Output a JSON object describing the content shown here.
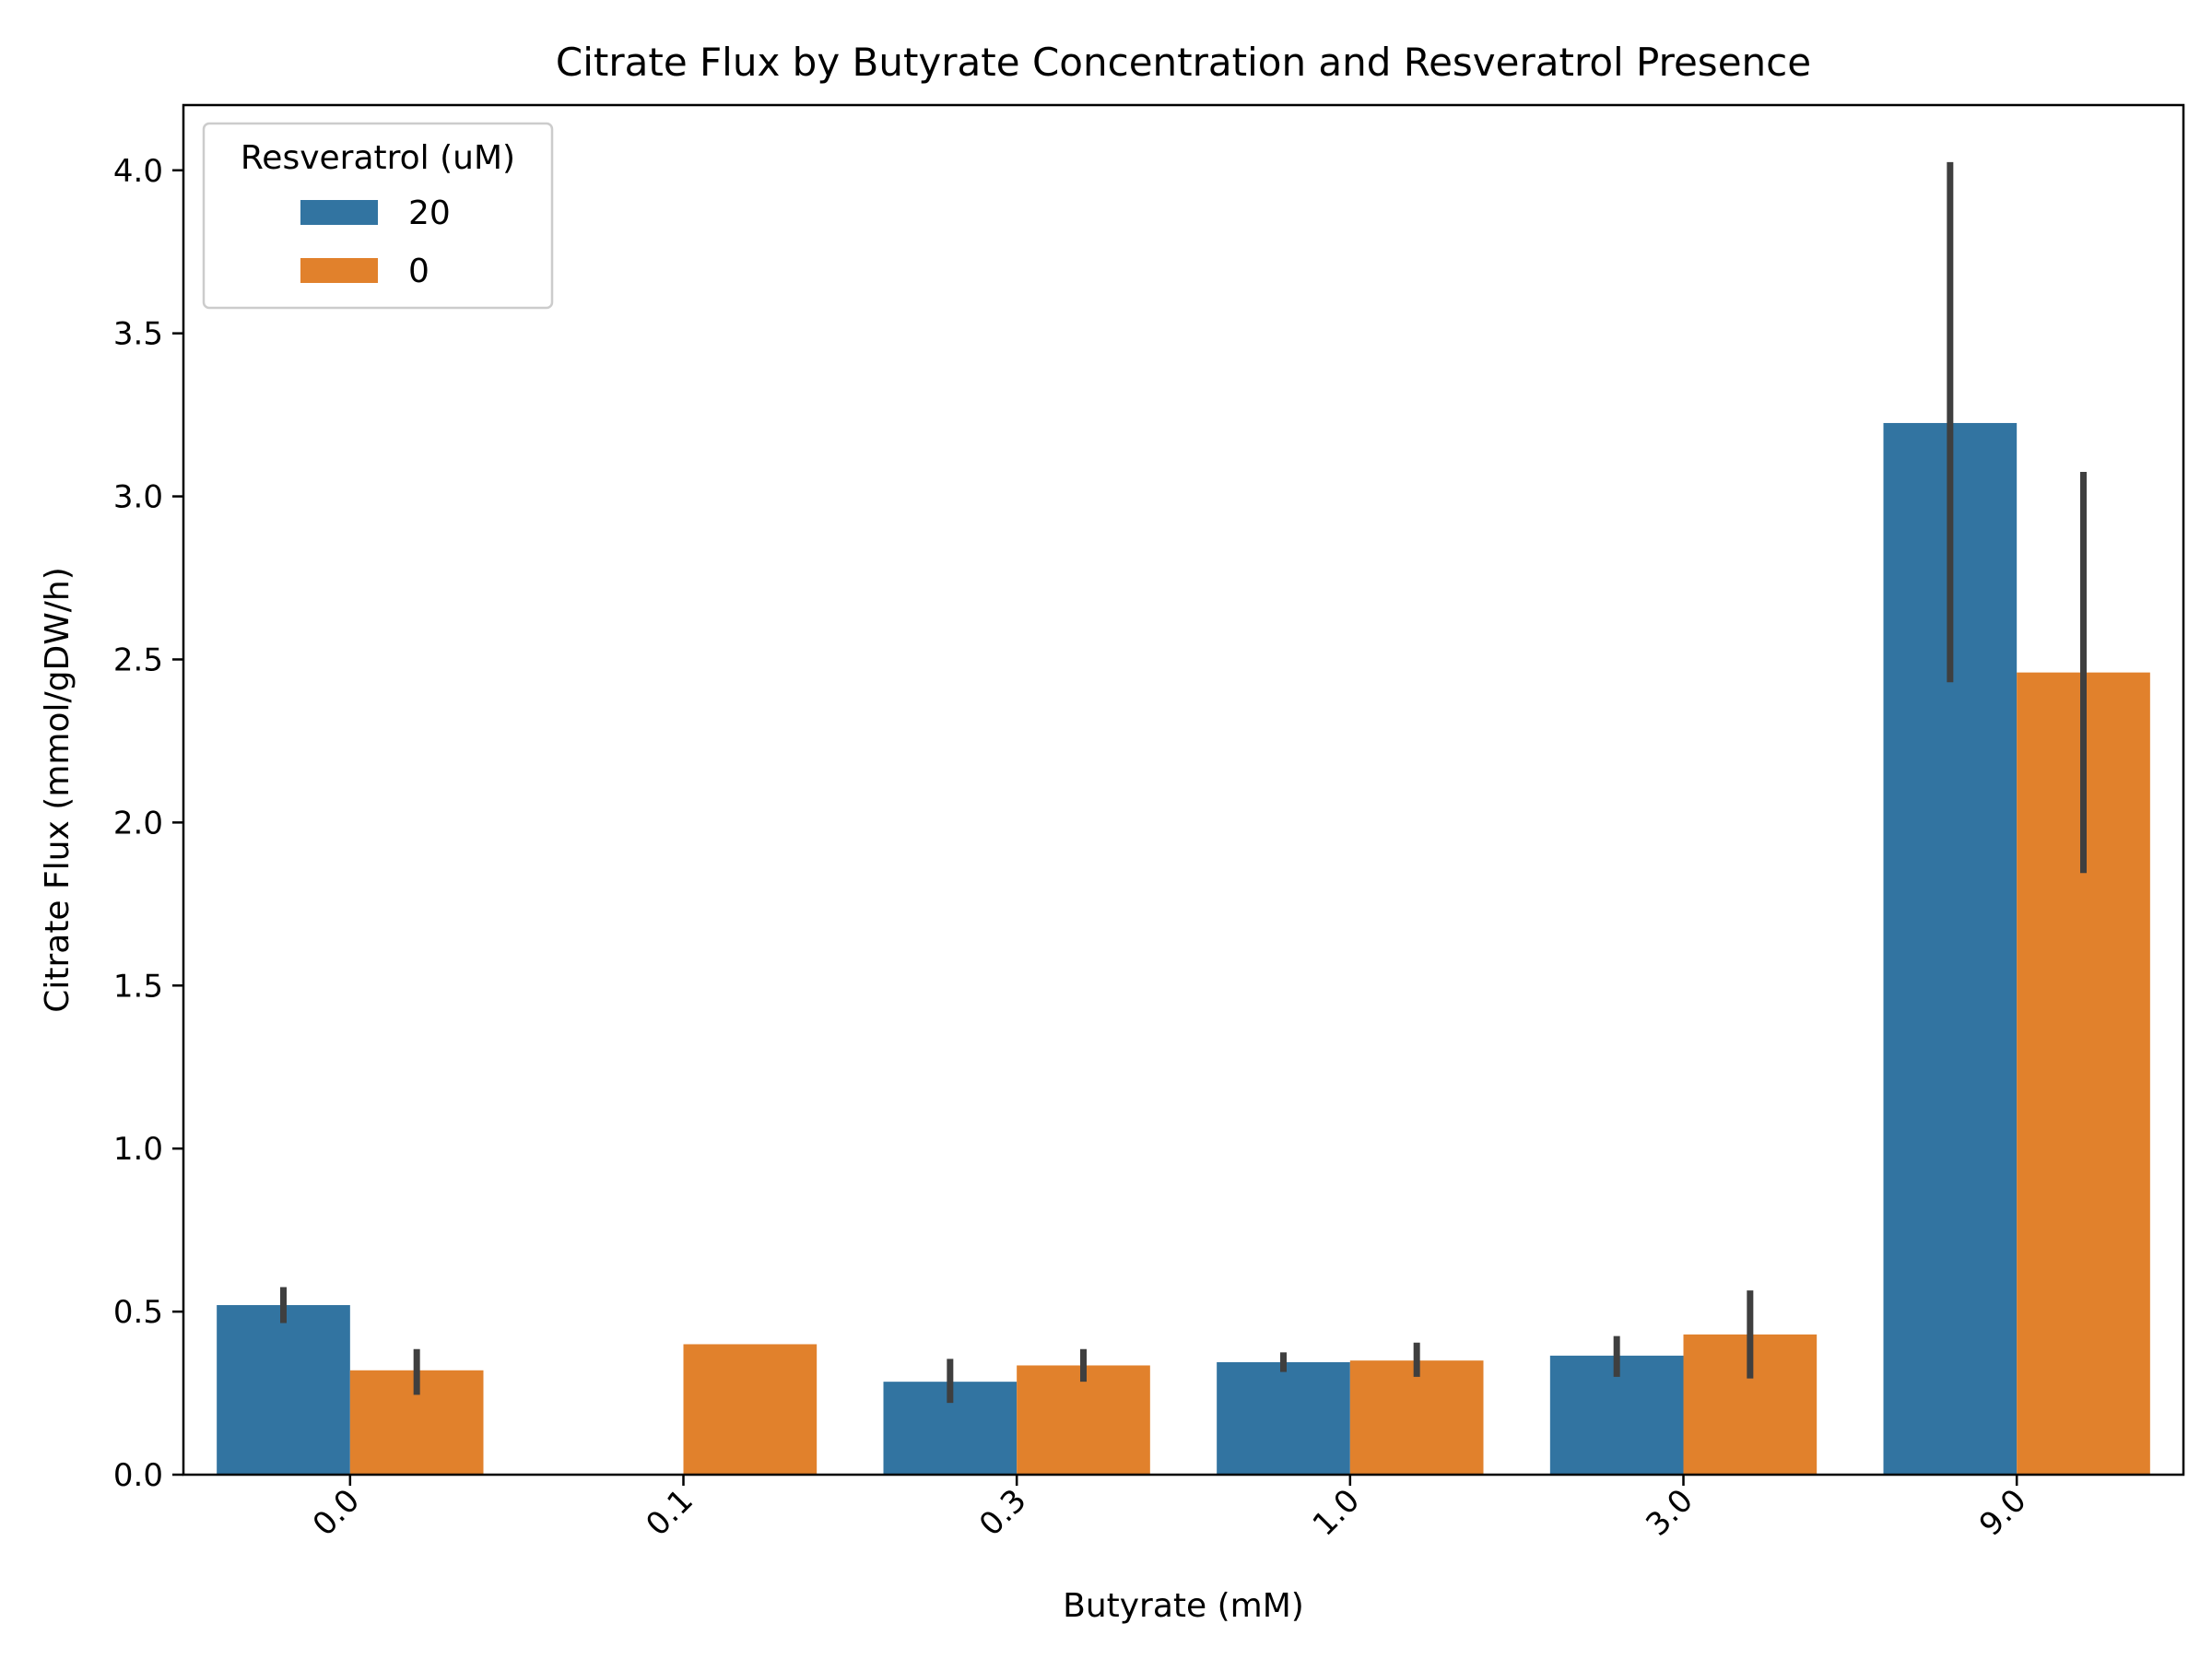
{
  "chart_data": {
    "type": "bar",
    "title": "Citrate Flux by Butyrate Concentration and Resveratrol Presence",
    "xlabel": "Butyrate (mM)",
    "ylabel": "Citrate Flux (mmol/gDW/h)",
    "categories": [
      "0.0",
      "0.1",
      "0.3",
      "1.0",
      "3.0",
      "9.0"
    ],
    "ylim": [
      0,
      4.2
    ],
    "yticks": [
      0.0,
      0.5,
      1.0,
      1.5,
      2.0,
      2.5,
      3.0,
      3.5,
      4.0
    ],
    "ytick_labels": [
      "0.0",
      "0.5",
      "1.0",
      "1.5",
      "2.0",
      "2.5",
      "3.0",
      "3.5",
      "4.0"
    ],
    "legend": {
      "title": "Resveratrol (uM)",
      "position": "top-left"
    },
    "series": [
      {
        "name": "20",
        "color": "#3274a1",
        "values": [
          0.52,
          null,
          0.285,
          0.345,
          0.365,
          3.225
        ],
        "err_low": [
          0.465,
          null,
          0.22,
          0.315,
          0.3,
          2.43
        ],
        "err_high": [
          0.575,
          null,
          0.355,
          0.375,
          0.425,
          4.025
        ]
      },
      {
        "name": "0",
        "color": "#e1812c",
        "values": [
          0.32,
          0.4,
          0.335,
          0.35,
          0.43,
          2.46
        ],
        "err_low": [
          0.245,
          null,
          0.285,
          0.3,
          0.295,
          1.845
        ],
        "err_high": [
          0.385,
          null,
          0.385,
          0.405,
          0.565,
          3.075
        ]
      }
    ],
    "errorbar_color": "#3f3f3f",
    "grid": false
  }
}
